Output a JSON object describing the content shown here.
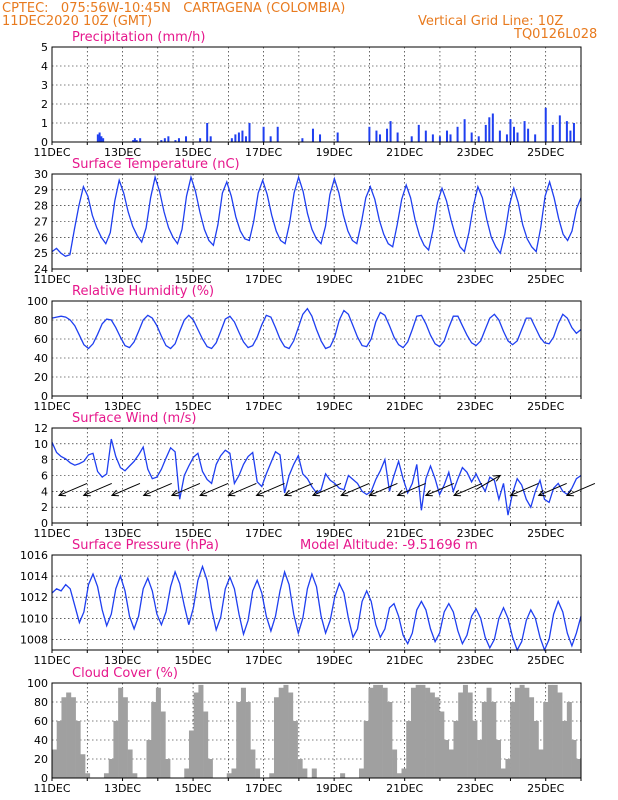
{
  "header": {
    "line1": "CPTEC:   075:56W-10:45N   CARTAGENA (COLOMBIA)",
    "line2": "11DEC2020 10Z (GMT)",
    "grid_note": "Vertical Grid Line: 10Z",
    "code": "TQ0126L028"
  },
  "colors": {
    "header": "#e87a1e",
    "title": "#e6178c",
    "line": "#1f3ff0",
    "cloud": "#a0a0a0",
    "arrow": "#000000"
  },
  "x_ticks": [
    "11DEC",
    "13DEC",
    "15DEC",
    "17DEC",
    "19DEC",
    "21DEC",
    "23DEC",
    "25DEC"
  ],
  "x_range_days": [
    11.0,
    26.0
  ],
  "chart_data": [
    {
      "type": "bar",
      "title": "Precipitation (mm/h)",
      "ylim": [
        0,
        5
      ],
      "yticks": [
        "0",
        "1",
        "2",
        "3",
        "4",
        "5"
      ],
      "series": [
        {
          "values_x": [
            12.3,
            12.35,
            12.4,
            12.45,
            13.3,
            13.35,
            13.4,
            13.5,
            14.1,
            14.2,
            14.3,
            14.5,
            14.6,
            14.8,
            15.2,
            15.4,
            15.5,
            16.1,
            16.2,
            16.3,
            16.4,
            16.5,
            16.6,
            17.0,
            17.2,
            17.4,
            18.1,
            18.4,
            18.6,
            19.1,
            20.0,
            20.2,
            20.3,
            20.5,
            20.6,
            20.8,
            21.2,
            21.4,
            21.6,
            21.8,
            22.0,
            22.2,
            22.3,
            22.5,
            22.7,
            22.9,
            23.1,
            23.3,
            23.4,
            23.5,
            23.7,
            23.9,
            24.0,
            24.1,
            24.2,
            24.4,
            24.5,
            24.7,
            25.0,
            25.2,
            25.4,
            25.6,
            25.7,
            25.8
          ],
          "values": [
            0.4,
            0.5,
            0.3,
            0.2,
            0.1,
            0.2,
            0.1,
            0.2,
            0.1,
            0.2,
            0.3,
            0.1,
            0.2,
            0.3,
            0.2,
            1.0,
            0.3,
            0.2,
            0.4,
            0.5,
            0.6,
            0.3,
            1.0,
            0.8,
            0.3,
            0.8,
            0.2,
            0.7,
            0.4,
            0.5,
            0.8,
            0.6,
            0.4,
            0.7,
            1.1,
            0.5,
            0.3,
            0.9,
            0.6,
            0.4,
            0.3,
            0.6,
            0.4,
            0.8,
            1.2,
            0.5,
            0.3,
            0.9,
            1.3,
            1.5,
            0.6,
            0.4,
            1.2,
            0.8,
            0.5,
            1.1,
            0.7,
            0.4,
            1.8,
            0.9,
            1.4,
            1.1,
            0.6,
            1.0
          ]
        }
      ]
    },
    {
      "type": "line",
      "title": "Surface Temperature (nC)",
      "ylim": [
        24,
        30
      ],
      "yticks": [
        "24",
        "25",
        "26",
        "27",
        "28",
        "29",
        "30"
      ],
      "series": [
        {
          "values": [
            25.1,
            25.3,
            25.0,
            24.8,
            24.9,
            26.5,
            28.0,
            29.2,
            28.6,
            27.4,
            26.6,
            26.0,
            25.6,
            26.3,
            28.3,
            29.6,
            28.8,
            27.6,
            26.7,
            26.1,
            25.7,
            26.6,
            28.5,
            29.8,
            28.9,
            27.6,
            26.6,
            26.0,
            25.6,
            26.5,
            28.6,
            29.8,
            28.9,
            27.6,
            26.5,
            25.8,
            25.5,
            26.8,
            28.8,
            29.5,
            28.6,
            27.3,
            26.4,
            25.9,
            25.8,
            27.0,
            28.8,
            29.6,
            28.7,
            27.4,
            26.4,
            25.8,
            25.6,
            26.9,
            28.8,
            29.8,
            28.9,
            27.5,
            26.5,
            25.9,
            25.6,
            26.7,
            28.7,
            29.7,
            28.8,
            27.4,
            26.4,
            25.8,
            25.6,
            26.9,
            28.5,
            29.2,
            28.4,
            27.1,
            26.2,
            25.6,
            25.4,
            26.8,
            28.4,
            29.3,
            28.5,
            27.1,
            26.1,
            25.5,
            25.2,
            26.5,
            28.2,
            29.1,
            28.3,
            27.1,
            26.1,
            25.4,
            25.1,
            26.3,
            28.0,
            29.2,
            28.5,
            27.1,
            26.0,
            25.4,
            25.0,
            26.2,
            28.0,
            29.1,
            28.2,
            26.8,
            25.9,
            25.4,
            25.1,
            26.6,
            28.6,
            29.5,
            28.5,
            27.2,
            26.2,
            25.8,
            26.4,
            27.8,
            28.5
          ]
        }
      ]
    },
    {
      "type": "line",
      "title": "Relative Humidity (%)",
      "ylim": [
        0,
        100
      ],
      "yticks": [
        "0",
        "20",
        "40",
        "60",
        "80",
        "100"
      ],
      "series": [
        {
          "values": [
            82,
            83,
            84,
            83,
            80,
            74,
            64,
            54,
            50,
            55,
            65,
            76,
            81,
            80,
            72,
            62,
            53,
            51,
            57,
            68,
            80,
            85,
            82,
            74,
            63,
            53,
            50,
            55,
            68,
            80,
            85,
            80,
            70,
            60,
            52,
            50,
            56,
            68,
            81,
            84,
            78,
            67,
            57,
            51,
            53,
            62,
            75,
            85,
            83,
            72,
            60,
            52,
            50,
            58,
            72,
            86,
            92,
            84,
            70,
            58,
            50,
            52,
            62,
            80,
            90,
            86,
            74,
            62,
            53,
            52,
            60,
            78,
            88,
            85,
            74,
            62,
            54,
            51,
            57,
            70,
            84,
            85,
            76,
            64,
            55,
            52,
            58,
            72,
            84,
            84,
            74,
            64,
            56,
            53,
            58,
            70,
            82,
            86,
            80,
            68,
            58,
            54,
            58,
            70,
            82,
            82,
            72,
            62,
            56,
            55,
            62,
            76,
            86,
            82,
            72,
            66,
            70
          ]
        }
      ]
    },
    {
      "type": "line",
      "title": "Surface Wind (m/s)",
      "ylim": [
        0,
        12
      ],
      "yticks": [
        "0",
        "2",
        "4",
        "6",
        "8",
        "10",
        "12"
      ],
      "series": [
        {
          "values": [
            10.2,
            8.9,
            8.4,
            8.1,
            7.6,
            7.3,
            7.5,
            7.8,
            8.6,
            8.8,
            6.5,
            5.8,
            6.2,
            10.6,
            8.4,
            7.0,
            6.6,
            7.2,
            7.8,
            8.6,
            9.6,
            6.8,
            5.6,
            5.8,
            6.8,
            8.2,
            9.5,
            9.0,
            3.0,
            6.0,
            7.2,
            8.3,
            8.8,
            6.5,
            5.5,
            5.0,
            7.4,
            8.5,
            9.2,
            8.8,
            5.0,
            6.0,
            7.4,
            8.4,
            8.9,
            5.2,
            4.6,
            6.2,
            7.6,
            9.0,
            8.6,
            3.8,
            6.0,
            7.4,
            8.5,
            6.2,
            5.6,
            4.6,
            3.8,
            4.2,
            6.2,
            5.4,
            5.0,
            4.4,
            4.2,
            6.0,
            5.5,
            5.0,
            4.0,
            3.6,
            4.0,
            5.5,
            6.6,
            8.0,
            4.0,
            6.0,
            7.8,
            5.6,
            3.8,
            5.0,
            7.4,
            1.6,
            5.6,
            7.2,
            5.6,
            3.6,
            4.8,
            6.4,
            4.0,
            5.6,
            7.0,
            6.4,
            5.2,
            6.2,
            5.0,
            4.0,
            5.8,
            5.4,
            3.0,
            5.0,
            1.0,
            3.8,
            5.6,
            4.8,
            3.0,
            2.0,
            4.0,
            5.4,
            3.0,
            2.6,
            4.4,
            5.0,
            4.0,
            3.6,
            4.4,
            5.6,
            6.0
          ]
        }
      ],
      "arrows_x_days": [
        11.2,
        11.9,
        12.7,
        13.6,
        14.4,
        15.2,
        16.0,
        16.8,
        17.6,
        18.4,
        19.2,
        20.0,
        20.8,
        21.6,
        22.4,
        23.2,
        24.0,
        24.8,
        25.6
      ],
      "arrows_dir": [
        "sw",
        "sw",
        "sw",
        "sw",
        "sw",
        "sw",
        "sw",
        "sw",
        "sw",
        "sw",
        "sw",
        "sw",
        "sw",
        "sw",
        "sw",
        "ne",
        "sw",
        "sw",
        "sw"
      ]
    },
    {
      "type": "line",
      "title": "Surface Pressure (hPa)",
      "subtitle": "Model Altitude: -9.51696 m",
      "ylim": [
        1007,
        1016
      ],
      "yticks": [
        "1008",
        "1010",
        "1012",
        "1014",
        "1016"
      ],
      "series": [
        {
          "values": [
            1012.4,
            1012.8,
            1012.6,
            1013.2,
            1012.8,
            1011.2,
            1009.6,
            1010.6,
            1013.2,
            1014.2,
            1013.0,
            1010.8,
            1009.3,
            1010.4,
            1012.8,
            1014.0,
            1012.6,
            1010.2,
            1009.0,
            1010.2,
            1012.8,
            1013.8,
            1012.6,
            1010.4,
            1009.4,
            1010.6,
            1013.0,
            1014.4,
            1013.3,
            1011.2,
            1009.4,
            1011.0,
            1013.6,
            1014.9,
            1013.6,
            1010.9,
            1008.9,
            1010.1,
            1012.8,
            1013.9,
            1012.8,
            1010.4,
            1008.5,
            1009.8,
            1012.6,
            1013.6,
            1012.4,
            1010.2,
            1008.8,
            1010.2,
            1012.6,
            1014.4,
            1013.2,
            1010.4,
            1008.6,
            1010.0,
            1012.8,
            1014.2,
            1013.0,
            1010.2,
            1008.6,
            1009.8,
            1012.0,
            1013.3,
            1012.4,
            1010.0,
            1008.2,
            1009.0,
            1011.6,
            1012.6,
            1011.6,
            1009.4,
            1008.2,
            1009.0,
            1011.0,
            1011.4,
            1010.2,
            1008.4,
            1007.6,
            1008.6,
            1010.8,
            1011.6,
            1010.8,
            1009.0,
            1007.8,
            1008.6,
            1010.6,
            1011.4,
            1010.6,
            1008.8,
            1007.6,
            1008.4,
            1010.2,
            1010.9,
            1010.0,
            1008.2,
            1007.2,
            1008.0,
            1010.0,
            1011.0,
            1010.0,
            1008.2,
            1007.0,
            1007.8,
            1009.8,
            1010.8,
            1010.0,
            1008.2,
            1007.0,
            1008.0,
            1010.4,
            1011.6,
            1010.6,
            1008.6,
            1007.4,
            1008.6,
            1010.2
          ]
        }
      ]
    },
    {
      "type": "area",
      "title": "Cloud Cover (%)",
      "ylim": [
        0,
        100
      ],
      "yticks": [
        "0",
        "20",
        "40",
        "60",
        "80",
        "100"
      ],
      "series": [
        {
          "values": [
            30,
            60,
            85,
            90,
            85,
            60,
            25,
            5,
            0,
            0,
            0,
            5,
            20,
            60,
            95,
            85,
            30,
            5,
            0,
            0,
            40,
            80,
            95,
            70,
            20,
            0,
            0,
            0,
            10,
            50,
            90,
            98,
            70,
            20,
            0,
            0,
            0,
            5,
            10,
            80,
            95,
            80,
            30,
            10,
            0,
            0,
            5,
            85,
            95,
            98,
            90,
            60,
            20,
            10,
            0,
            10,
            0,
            0,
            0,
            0,
            0,
            5,
            0,
            0,
            0,
            10,
            60,
            95,
            98,
            98,
            95,
            80,
            30,
            5,
            10,
            60,
            95,
            98,
            98,
            95,
            90,
            85,
            70,
            40,
            30,
            60,
            90,
            98,
            90,
            60,
            40,
            80,
            95,
            80,
            40,
            10,
            20,
            80,
            95,
            98,
            95,
            85,
            60,
            30,
            80,
            98,
            98,
            90,
            60,
            80,
            40,
            20
          ]
        }
      ]
    }
  ]
}
